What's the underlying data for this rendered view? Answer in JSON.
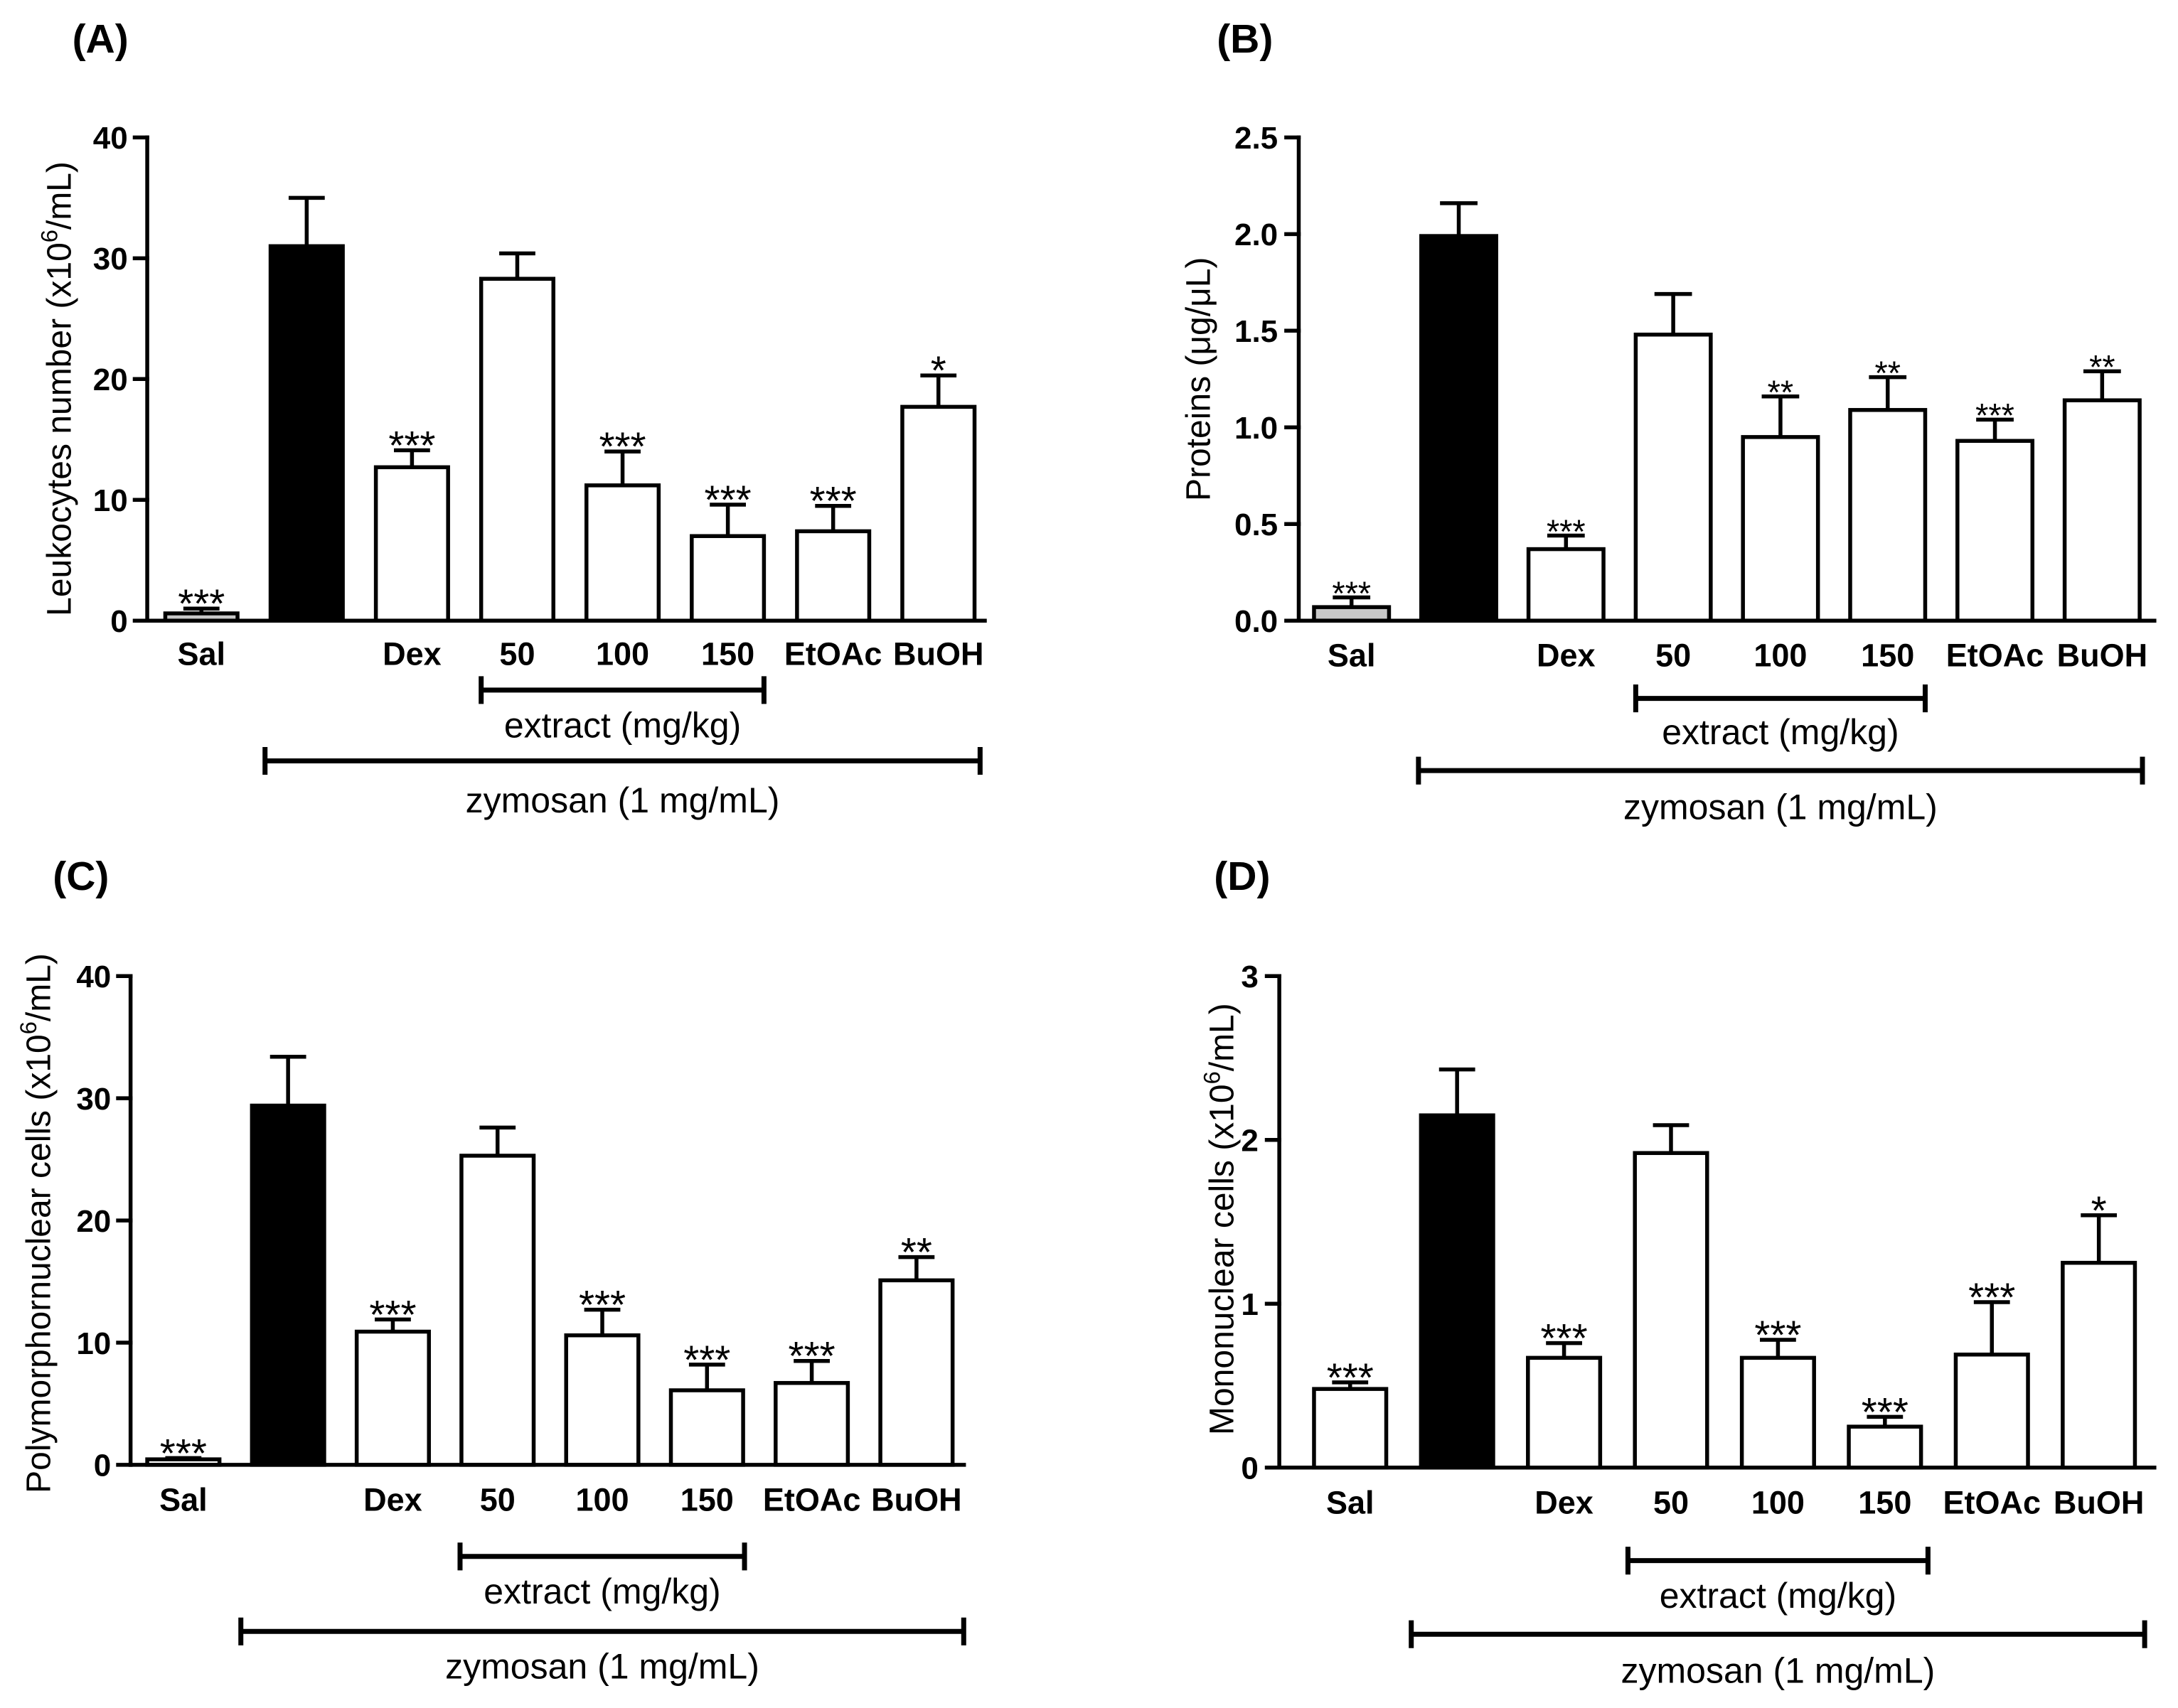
{
  "figure": {
    "background_color": "#ffffff",
    "ink_color": "#000000"
  },
  "chart_data": [
    {
      "panel": "(A)",
      "type": "bar",
      "ylabel": [
        "Leukocytes number (x10",
        "6",
        "/mL)"
      ],
      "categories": [
        "Sal",
        "",
        "Dex",
        "50",
        "100",
        "150",
        "EtOAc",
        "BuOH"
      ],
      "values": [
        0.6,
        31.0,
        12.7,
        28.3,
        11.2,
        7.0,
        7.4,
        17.7
      ],
      "error": [
        0.4,
        4.0,
        1.4,
        2.1,
        2.8,
        2.6,
        2.1,
        2.6
      ],
      "significance": [
        "***",
        "",
        "***",
        "",
        "***",
        "***",
        "***",
        "*"
      ],
      "fills": [
        "#c8c8c8",
        "#000000",
        "#ffffff",
        "#ffffff",
        "#ffffff",
        "#ffffff",
        "#ffffff",
        "#ffffff"
      ],
      "ylim": [
        0,
        40
      ],
      "yticks": [
        0,
        10,
        20,
        30,
        40
      ],
      "ytick_labels": [
        "0",
        "10",
        "20",
        "30",
        "40"
      ],
      "groups": [
        {
          "label": "extract (mg/kg)",
          "from_category": 3,
          "to_category": 5
        },
        {
          "label": "zymosan (1 mg/mL)",
          "from_category": 1,
          "to_category": 7
        }
      ]
    },
    {
      "panel": "(B)",
      "type": "bar",
      "ylabel": [
        "Proteins (μg/μL)"
      ],
      "categories": [
        "Sal",
        "",
        "Dex",
        "50",
        "100",
        "150",
        "EtOAc",
        "BuOH"
      ],
      "values": [
        0.07,
        1.99,
        0.37,
        1.48,
        0.95,
        1.09,
        0.93,
        1.14
      ],
      "error": [
        0.05,
        0.17,
        0.07,
        0.21,
        0.21,
        0.17,
        0.11,
        0.15
      ],
      "significance": [
        "***",
        "",
        "***",
        "",
        "**",
        "**",
        "***",
        "**"
      ],
      "fills": [
        "#c8c8c8",
        "#000000",
        "#ffffff",
        "#ffffff",
        "#ffffff",
        "#ffffff",
        "#ffffff",
        "#ffffff"
      ],
      "ylim": [
        0,
        2.5
      ],
      "yticks": [
        0,
        0.5,
        1.0,
        1.5,
        2.0,
        2.5
      ],
      "ytick_labels": [
        "0.0",
        "0.5",
        "1.0",
        "1.5",
        "2.0",
        "2.5"
      ],
      "groups": [
        {
          "label": "extract (mg/kg)",
          "from_category": 3,
          "to_category": 5
        },
        {
          "label": "zymosan (1 mg/mL)",
          "from_category": 1,
          "to_category": 7
        }
      ]
    },
    {
      "panel": "(C)",
      "type": "bar",
      "ylabel": [
        "Polymorphornuclear cells (x10",
        "6",
        "/mL)"
      ],
      "categories": [
        "Sal",
        "",
        "Dex",
        "50",
        "100",
        "150",
        "EtOAc",
        "BuOH"
      ],
      "values": [
        0.45,
        29.4,
        10.9,
        25.3,
        10.6,
        6.1,
        6.7,
        15.1
      ],
      "error": [
        0.1,
        4.0,
        1.0,
        2.3,
        2.1,
        2.1,
        1.8,
        1.9
      ],
      "significance": [
        "***",
        "",
        "***",
        "",
        "***",
        "***",
        "***",
        "**"
      ],
      "fills": [
        "#ffffff",
        "#000000",
        "#ffffff",
        "#ffffff",
        "#ffffff",
        "#ffffff",
        "#ffffff",
        "#ffffff"
      ],
      "ylim": [
        0,
        40
      ],
      "yticks": [
        0,
        10,
        20,
        30,
        40
      ],
      "ytick_labels": [
        "0",
        "10",
        "20",
        "30",
        "40"
      ],
      "groups": [
        {
          "label": "extract (mg/kg)",
          "from_category": 3,
          "to_category": 5
        },
        {
          "label": "zymosan (1 mg/mL)",
          "from_category": 1,
          "to_category": 7
        }
      ]
    },
    {
      "panel": "(D)",
      "type": "bar",
      "ylabel": [
        "Mononuclear cells (x10",
        "6",
        "/mL)"
      ],
      "categories": [
        "Sal",
        "",
        "Dex",
        "50",
        "100",
        "150",
        "EtOAc",
        "BuOH"
      ],
      "values": [
        0.48,
        2.15,
        0.67,
        1.92,
        0.67,
        0.25,
        0.69,
        1.25
      ],
      "error": [
        0.04,
        0.28,
        0.09,
        0.17,
        0.11,
        0.06,
        0.32,
        0.29
      ],
      "significance": [
        "***",
        "",
        "***",
        "",
        "***",
        "***",
        "***",
        "*"
      ],
      "fills": [
        "#ffffff",
        "#000000",
        "#ffffff",
        "#ffffff",
        "#ffffff",
        "#ffffff",
        "#ffffff",
        "#ffffff"
      ],
      "ylim": [
        0,
        3
      ],
      "yticks": [
        0,
        1,
        2,
        3
      ],
      "ytick_labels": [
        "0",
        "1",
        "2",
        "3"
      ],
      "groups": [
        {
          "label": "extract (mg/kg)",
          "from_category": 3,
          "to_category": 5
        },
        {
          "label": "zymosan (1 mg/mL)",
          "from_category": 1,
          "to_category": 7
        }
      ]
    }
  ]
}
